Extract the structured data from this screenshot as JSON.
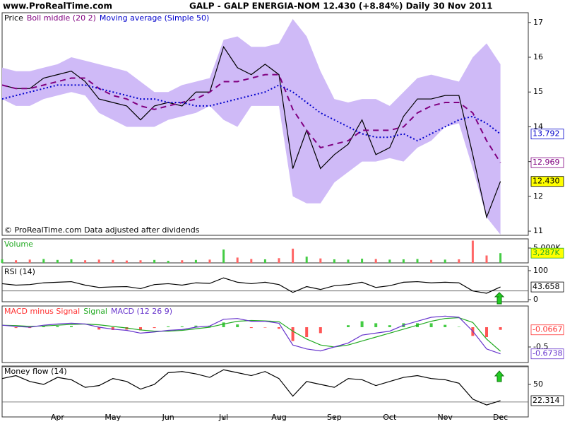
{
  "header": {
    "site": "www.ProRealTime.com",
    "title": "GALP - GALP ENERGIA-NOM    12.430 (+8.84%)     Daily  30 Nov 2011"
  },
  "chart_data": [
    {
      "type": "line",
      "ylim": [
        10.88,
        17.28
      ],
      "yticks": [
        11,
        12,
        13,
        14,
        15,
        16,
        17
      ],
      "note": "© ProRealTime.com  Data adjusted after dividends",
      "band": {
        "color": "#cfbaf7",
        "upper": [
          15.7,
          15.6,
          15.6,
          15.7,
          15.8,
          16.0,
          15.9,
          15.8,
          15.7,
          15.6,
          15.3,
          15.0,
          15.0,
          15.2,
          15.3,
          15.4,
          16.5,
          16.6,
          16.3,
          16.3,
          16.4,
          17.1,
          16.6,
          15.6,
          14.8,
          14.7,
          14.8,
          14.8,
          14.6,
          15.0,
          15.4,
          15.5,
          15.4,
          15.3,
          16.0,
          16.4,
          15.8
        ],
        "lower": [
          14.8,
          14.6,
          14.6,
          14.8,
          14.9,
          15.0,
          14.9,
          14.4,
          14.2,
          14.0,
          14.0,
          14.0,
          14.2,
          14.3,
          14.4,
          14.6,
          14.2,
          14.0,
          14.6,
          14.6,
          14.6,
          12.0,
          11.8,
          11.8,
          12.4,
          12.7,
          13.0,
          13.0,
          13.1,
          13.0,
          13.4,
          13.6,
          14.0,
          14.1,
          12.8,
          11.4,
          10.9
        ]
      },
      "series": [
        {
          "name": "Price",
          "color": "#000000",
          "label_fill": "#ffff00",
          "last_label": "12.430",
          "values": [
            15.2,
            15.1,
            15.1,
            15.4,
            15.5,
            15.6,
            15.3,
            14.8,
            14.7,
            14.6,
            14.2,
            14.6,
            14.7,
            14.6,
            15.0,
            15.0,
            16.3,
            15.7,
            15.5,
            15.8,
            15.5,
            12.8,
            13.9,
            12.8,
            13.2,
            13.5,
            14.2,
            13.2,
            13.4,
            14.3,
            14.8,
            14.8,
            14.9,
            14.9,
            13.2,
            11.4,
            12.43
          ]
        },
        {
          "name": "Boll middle (20 2)",
          "color": "#800080",
          "dash": "8 6",
          "label_fill": "#ffffff",
          "last_label": "12.969",
          "values": [
            15.2,
            15.1,
            15.1,
            15.2,
            15.3,
            15.4,
            15.4,
            15.1,
            14.9,
            14.8,
            14.6,
            14.5,
            14.6,
            14.7,
            14.8,
            15.0,
            15.3,
            15.3,
            15.4,
            15.5,
            15.5,
            14.5,
            13.9,
            13.4,
            13.5,
            13.6,
            13.9,
            13.9,
            13.9,
            14.0,
            14.4,
            14.6,
            14.7,
            14.7,
            14.4,
            13.6,
            12.969
          ]
        },
        {
          "name": "Moving average (Simple 50)",
          "color": "#0000cc",
          "dash": "2 3",
          "label_fill": "#ffffff",
          "last_label": "13.792",
          "values": [
            14.8,
            14.9,
            15.0,
            15.1,
            15.2,
            15.2,
            15.2,
            15.1,
            15.0,
            14.9,
            14.8,
            14.8,
            14.7,
            14.7,
            14.6,
            14.6,
            14.7,
            14.8,
            14.9,
            15.0,
            15.2,
            15.0,
            14.7,
            14.4,
            14.2,
            14.0,
            13.8,
            13.7,
            13.7,
            13.8,
            13.6,
            13.8,
            14.0,
            14.2,
            14.3,
            14.1,
            13.792
          ]
        }
      ]
    },
    {
      "type": "bar",
      "ylim": [
        0,
        8100
      ],
      "yticks": [
        {
          "value": 5000,
          "label": "5,000K"
        }
      ],
      "colors": [
        "#44cc44",
        "#ff6666",
        "#ff6666",
        "#44cc44",
        "#44cc44",
        "#44cc44",
        "#ff6666",
        "#ff6666",
        "#ff6666",
        "#ff6666",
        "#ff6666",
        "#44cc44",
        "#44cc44",
        "#ff6666",
        "#44cc44",
        "#ff6666",
        "#44cc44",
        "#ff6666",
        "#ff6666",
        "#44cc44",
        "#ff6666",
        "#ff6666",
        "#44cc44",
        "#ff6666",
        "#44cc44",
        "#44cc44",
        "#44cc44",
        "#ff6666",
        "#44cc44",
        "#44cc44",
        "#44cc44",
        "#ff6666",
        "#44cc44",
        "#ff6666",
        "#ff6666",
        "#ff6666",
        "#44cc44"
      ],
      "series": [
        {
          "name": "Volume",
          "color": "#22aa22",
          "label_fill": "#ffff00",
          "last_label": "3,287K",
          "values": [
            1200,
            900,
            1100,
            1300,
            1000,
            1200,
            900,
            1100,
            1000,
            800,
            900,
            1000,
            700,
            900,
            1000,
            1100,
            4500,
            1800,
            1300,
            1200,
            1600,
            4800,
            2100,
            1500,
            1200,
            1100,
            1400,
            1300,
            1100,
            1200,
            1300,
            1000,
            1100,
            1200,
            7500,
            2500,
            3287
          ]
        }
      ]
    },
    {
      "type": "line",
      "ylim": [
        -7.3,
        114.6
      ],
      "yticks": [
        0,
        100
      ],
      "levels": [
        30
      ],
      "series": [
        {
          "name": "RSI (14)",
          "color": "#000000",
          "label_fill": "#ffffff",
          "last_label": "43.658",
          "values": [
            55,
            50,
            52,
            58,
            60,
            62,
            50,
            42,
            44,
            45,
            38,
            52,
            55,
            50,
            58,
            56,
            75,
            60,
            55,
            60,
            52,
            25,
            45,
            35,
            48,
            52,
            60,
            42,
            48,
            60,
            62,
            58,
            60,
            58,
            30,
            22,
            43.658
          ]
        }
      ]
    },
    {
      "type": "combo",
      "ylim": [
        -0.893,
        0.536
      ],
      "yticks": [
        -0.5
      ],
      "pos_color": "#44cc44",
      "neg_color": "#ff5555",
      "series": [
        {
          "name": "MACD minus Signal",
          "type": "histogram",
          "color": "#ff3333",
          "label_fill": "#ffffff",
          "last_label": "-0.0667",
          "values": [
            0,
            -0.02,
            -0.02,
            0.02,
            0.03,
            0.03,
            0,
            -0.06,
            -0.07,
            -0.06,
            -0.08,
            -0.02,
            0.02,
            0.02,
            0.04,
            0.03,
            0.12,
            0.07,
            -0.02,
            -0.01,
            -0.04,
            -0.35,
            -0.25,
            -0.15,
            0,
            0.05,
            0.15,
            0.1,
            0.05,
            0.1,
            0.1,
            0.1,
            0.06,
            0.01,
            -0.22,
            -0.25,
            -0.0667
          ]
        },
        {
          "name": "Signal",
          "type": "line",
          "color": "#22aa22",
          "values": [
            0.05,
            0.04,
            0.02,
            0.03,
            0.05,
            0.07,
            0.08,
            0.06,
            0.02,
            -0.02,
            -0.07,
            -0.1,
            -0.1,
            -0.08,
            -0.04,
            0.0,
            0.08,
            0.15,
            0.17,
            0.16,
            0.14,
            -0.1,
            -0.3,
            -0.45,
            -0.5,
            -0.45,
            -0.35,
            -0.25,
            -0.15,
            -0.05,
            0.05,
            0.15,
            0.22,
            0.24,
            0.12,
            -0.3,
            -0.607
          ]
        },
        {
          "name": "MACD (12 26 9)",
          "type": "line",
          "color": "#6633cc",
          "label_fill": "#ffffff",
          "last_label": "-0.6738",
          "values": [
            0.05,
            0.02,
            0.0,
            0.05,
            0.08,
            0.1,
            0.08,
            0.0,
            -0.05,
            -0.08,
            -0.15,
            -0.12,
            -0.08,
            -0.06,
            0.0,
            0.03,
            0.2,
            0.22,
            0.15,
            0.15,
            0.1,
            -0.45,
            -0.55,
            -0.6,
            -0.5,
            -0.4,
            -0.2,
            -0.15,
            -0.1,
            0.05,
            0.15,
            0.25,
            0.28,
            0.25,
            -0.1,
            -0.55,
            -0.6738
          ]
        }
      ]
    },
    {
      "type": "line",
      "ylim": [
        -5.4,
        81.3
      ],
      "yticks": [
        50
      ],
      "levels": [
        20,
        80
      ],
      "categories": [
        null,
        null,
        null,
        null,
        "Apr",
        null,
        null,
        null,
        "May",
        null,
        null,
        null,
        "Jun",
        null,
        null,
        null,
        "Jul",
        null,
        null,
        null,
        "Aug",
        null,
        null,
        null,
        "Sep",
        null,
        null,
        null,
        "Oct",
        null,
        null,
        null,
        "Nov",
        null,
        null,
        null,
        "Dec"
      ],
      "series": [
        {
          "name": "Money flow (14)",
          "color": "#000000",
          "label_fill": "#ffffff",
          "last_label": "22.314",
          "values": [
            60,
            65,
            55,
            50,
            62,
            58,
            45,
            48,
            60,
            55,
            42,
            50,
            70,
            72,
            68,
            62,
            75,
            70,
            65,
            72,
            60,
            30,
            55,
            50,
            45,
            60,
            58,
            48,
            55,
            62,
            65,
            60,
            58,
            52,
            25,
            15,
            22.314
          ]
        }
      ]
    }
  ]
}
